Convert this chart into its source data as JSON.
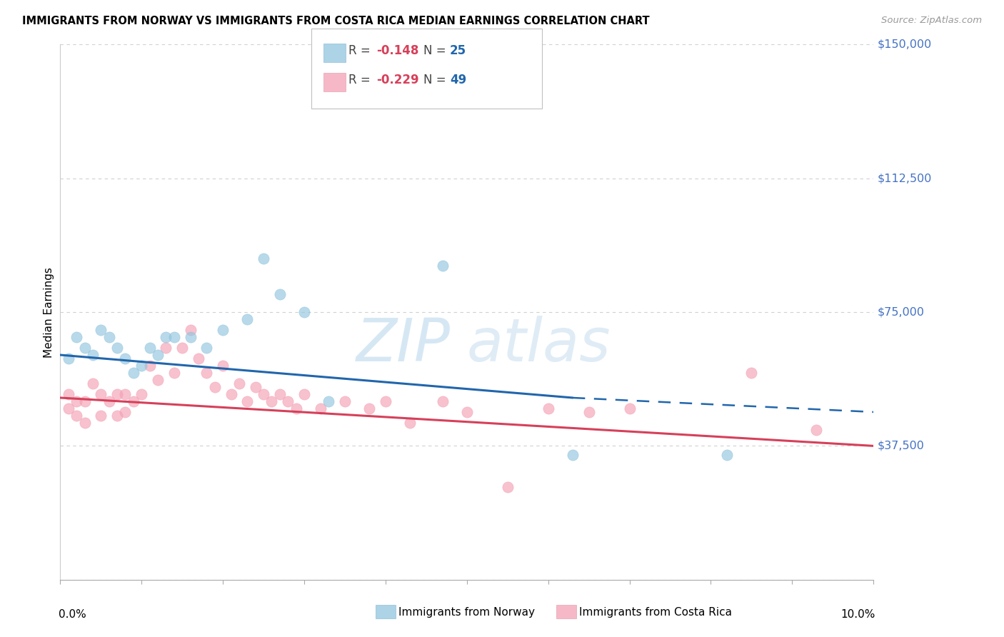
{
  "title": "IMMIGRANTS FROM NORWAY VS IMMIGRANTS FROM COSTA RICA MEDIAN EARNINGS CORRELATION CHART",
  "source": "Source: ZipAtlas.com",
  "ylabel": "Median Earnings",
  "y_ticks": [
    0,
    37500,
    75000,
    112500,
    150000
  ],
  "y_tick_labels": [
    "",
    "$37,500",
    "$75,000",
    "$112,500",
    "$150,000"
  ],
  "xlim": [
    0.0,
    0.1
  ],
  "ylim": [
    0,
    150000
  ],
  "watermark": "ZIPatlas",
  "norway": {
    "R": -0.148,
    "N": 25,
    "color": "#92c5de",
    "scatter_x": [
      0.001,
      0.002,
      0.003,
      0.004,
      0.005,
      0.006,
      0.007,
      0.008,
      0.009,
      0.01,
      0.011,
      0.012,
      0.013,
      0.014,
      0.016,
      0.018,
      0.02,
      0.023,
      0.025,
      0.027,
      0.03,
      0.033,
      0.047,
      0.063,
      0.082
    ],
    "scatter_y": [
      62000,
      68000,
      65000,
      63000,
      70000,
      68000,
      65000,
      62000,
      58000,
      60000,
      65000,
      63000,
      68000,
      68000,
      68000,
      65000,
      70000,
      73000,
      90000,
      80000,
      75000,
      50000,
      88000,
      35000,
      35000
    ]
  },
  "costa_rica": {
    "R": -0.229,
    "N": 49,
    "color": "#f4a0b5",
    "scatter_x": [
      0.001,
      0.001,
      0.002,
      0.002,
      0.003,
      0.003,
      0.004,
      0.005,
      0.005,
      0.006,
      0.007,
      0.007,
      0.008,
      0.008,
      0.009,
      0.01,
      0.011,
      0.012,
      0.013,
      0.014,
      0.015,
      0.016,
      0.017,
      0.018,
      0.019,
      0.02,
      0.021,
      0.022,
      0.023,
      0.024,
      0.025,
      0.026,
      0.027,
      0.028,
      0.029,
      0.03,
      0.032,
      0.035,
      0.038,
      0.04,
      0.043,
      0.047,
      0.05,
      0.055,
      0.06,
      0.065,
      0.07,
      0.085,
      0.093
    ],
    "scatter_y": [
      52000,
      48000,
      50000,
      46000,
      50000,
      44000,
      55000,
      52000,
      46000,
      50000,
      52000,
      46000,
      52000,
      47000,
      50000,
      52000,
      60000,
      56000,
      65000,
      58000,
      65000,
      70000,
      62000,
      58000,
      54000,
      60000,
      52000,
      55000,
      50000,
      54000,
      52000,
      50000,
      52000,
      50000,
      48000,
      52000,
      48000,
      50000,
      48000,
      50000,
      44000,
      50000,
      47000,
      26000,
      48000,
      47000,
      48000,
      58000,
      42000
    ]
  },
  "norway_line": {
    "x_solid_start": 0.0,
    "x_solid_end": 0.063,
    "x_dashed_end": 0.1,
    "y_at_0": 63000,
    "y_at_063": 51000,
    "y_at_10": 47000,
    "color": "#2166ac"
  },
  "costa_rica_line": {
    "x_start": 0.0,
    "x_end": 0.1,
    "y_at_0": 51000,
    "y_at_10": 37500,
    "color": "#d6405a"
  },
  "bottom_legend_norway": "Immigrants from Norway",
  "bottom_legend_cr": "Immigrants from Costa Rica",
  "background_color": "#ffffff",
  "grid_color": "#d0d0d0"
}
